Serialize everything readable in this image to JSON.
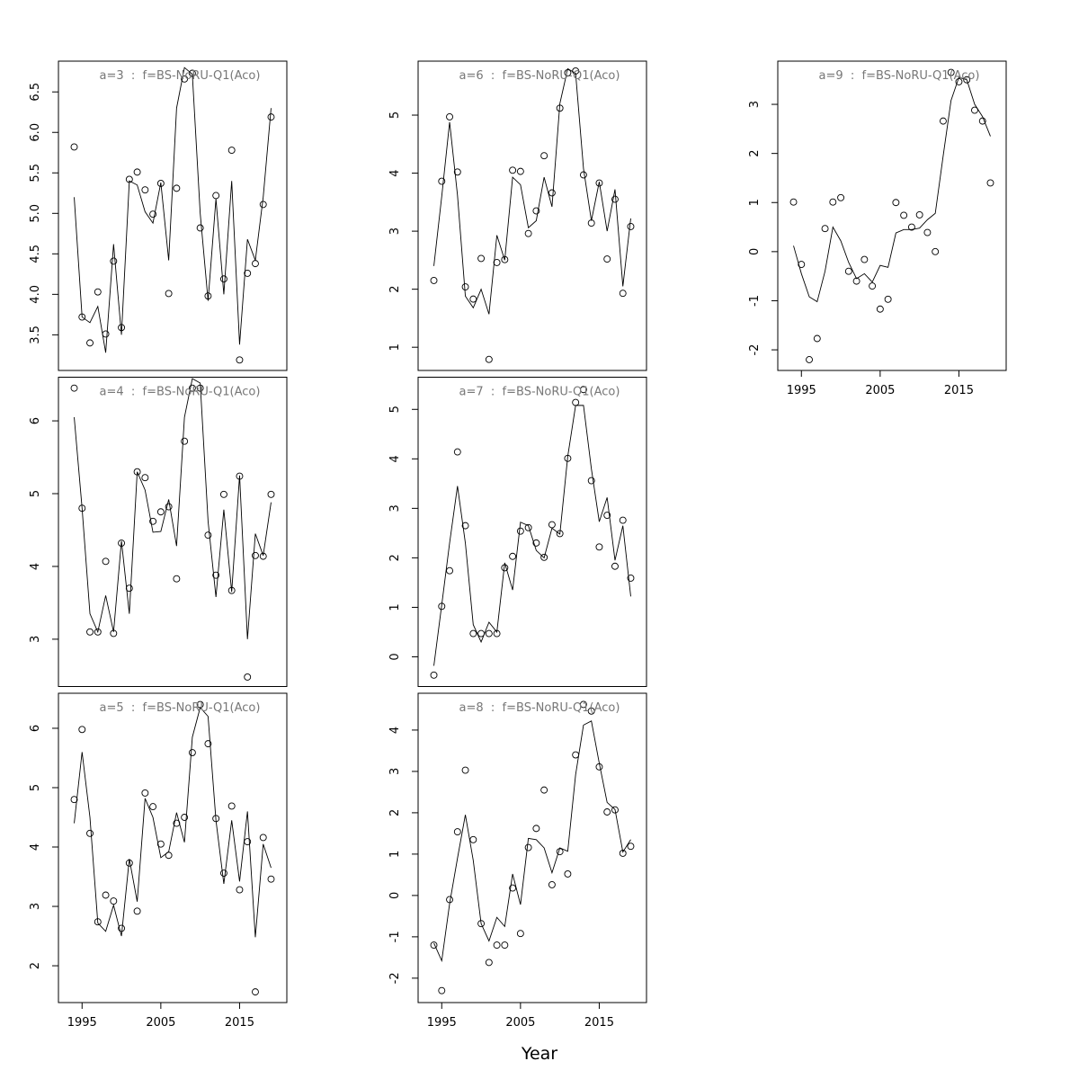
{
  "xlabel": "Year",
  "chart_data": [
    {
      "type": "line",
      "title": "a=3  :  f=BS-NoRU-Q1(Aco)",
      "xaxis": false,
      "x": [
        1994,
        1995,
        1996,
        1997,
        1998,
        1999,
        2000,
        2001,
        2002,
        2003,
        2004,
        2005,
        2006,
        2007,
        2008,
        2009,
        2010,
        2011,
        2012,
        2013,
        2014,
        2015,
        2016,
        2017,
        2018,
        2019
      ],
      "xlim": [
        1992,
        2021
      ],
      "xticks": [
        1995,
        2005,
        2015
      ],
      "ylim": [
        3.06,
        6.88
      ],
      "yticks": [
        3.5,
        {
          "value": 4,
          "label": "4.0"
        },
        4.5,
        {
          "value": 5,
          "label": "5.0"
        },
        5.5,
        {
          "value": 6,
          "label": "6.0"
        },
        6.5
      ],
      "series": [
        {
          "mark": "points",
          "color": "#000000",
          "values": [
            5.82,
            3.72,
            3.4,
            4.03,
            3.51,
            4.41,
            3.59,
            5.42,
            5.51,
            5.29,
            4.99,
            5.37,
            4.01,
            5.31,
            6.66,
            6.73,
            4.82,
            3.98,
            5.22,
            4.19,
            5.78,
            3.19,
            4.26,
            4.38,
            5.11,
            6.19
          ]
        },
        {
          "mark": "line",
          "color": "#000000",
          "values": [
            5.2,
            3.72,
            3.65,
            3.85,
            3.28,
            4.62,
            3.5,
            5.4,
            5.35,
            5.02,
            4.88,
            5.38,
            4.42,
            6.3,
            6.8,
            6.72,
            5.0,
            3.92,
            5.18,
            4.0,
            5.4,
            3.38,
            4.68,
            4.42,
            5.2,
            6.3
          ]
        }
      ]
    },
    {
      "type": "line",
      "title": "a=4  :  f=BS-NoRU-Q1(Aco)",
      "xaxis": false,
      "x": [
        1994,
        1995,
        1996,
        1997,
        1998,
        1999,
        2000,
        2001,
        2002,
        2003,
        2004,
        2005,
        2006,
        2007,
        2008,
        2009,
        2010,
        2011,
        2012,
        2013,
        2014,
        2015,
        2016,
        2017,
        2018,
        2019
      ],
      "xlim": [
        1992,
        2021
      ],
      "xticks": [
        1995,
        2005,
        2015
      ],
      "ylim": [
        2.35,
        6.6
      ],
      "yticks": [
        3,
        4,
        5,
        6
      ],
      "series": [
        {
          "mark": "points",
          "color": "#000000",
          "values": [
            6.45,
            4.8,
            3.1,
            3.1,
            4.07,
            3.08,
            4.32,
            3.7,
            5.3,
            5.22,
            4.62,
            4.75,
            4.82,
            3.83,
            5.72,
            6.45,
            6.45,
            4.43,
            3.88,
            4.99,
            3.67,
            5.24,
            2.48,
            4.15,
            4.14,
            4.99
          ]
        },
        {
          "mark": "line",
          "color": "#000000",
          "values": [
            6.05,
            4.8,
            3.35,
            3.1,
            3.6,
            3.1,
            4.35,
            3.35,
            5.3,
            5.05,
            4.47,
            4.48,
            4.92,
            4.28,
            6.05,
            6.58,
            6.52,
            4.62,
            3.58,
            4.78,
            3.65,
            5.25,
            3.0,
            4.45,
            4.15,
            4.88
          ]
        }
      ]
    },
    {
      "type": "line",
      "title": "a=5  :  f=BS-NoRU-Q1(Aco)",
      "xaxis": true,
      "x": [
        1994,
        1995,
        1996,
        1997,
        1998,
        1999,
        2000,
        2001,
        2002,
        2003,
        2004,
        2005,
        2006,
        2007,
        2008,
        2009,
        2010,
        2011,
        2012,
        2013,
        2014,
        2015,
        2016,
        2017,
        2018,
        2019
      ],
      "xlim": [
        1992,
        2021
      ],
      "xticks": [
        1995,
        2005,
        2015
      ],
      "ylim": [
        1.38,
        6.59
      ],
      "yticks": [
        2,
        3,
        4,
        5,
        6
      ],
      "series": [
        {
          "mark": "points",
          "color": "#000000",
          "values": [
            4.8,
            5.98,
            4.23,
            2.74,
            3.19,
            3.09,
            2.63,
            3.73,
            2.92,
            4.91,
            4.68,
            4.05,
            3.86,
            4.4,
            4.5,
            5.59,
            6.4,
            5.74,
            4.48,
            3.56,
            4.69,
            3.28,
            4.09,
            1.56,
            4.16,
            3.46
          ]
        },
        {
          "mark": "line",
          "color": "#000000",
          "values": [
            4.4,
            5.6,
            4.5,
            2.72,
            2.58,
            3.02,
            2.5,
            3.8,
            3.08,
            4.82,
            4.5,
            3.82,
            3.92,
            4.58,
            4.08,
            5.85,
            6.35,
            6.2,
            4.45,
            3.38,
            4.45,
            3.42,
            4.6,
            2.48,
            4.05,
            3.65
          ]
        }
      ]
    },
    {
      "type": "line",
      "title": "a=6  :  f=BS-NoRU-Q1(Aco)",
      "xaxis": false,
      "x": [
        1994,
        1995,
        1996,
        1997,
        1998,
        1999,
        2000,
        2001,
        2002,
        2003,
        2004,
        2005,
        2006,
        2007,
        2008,
        2009,
        2010,
        2011,
        2012,
        2013,
        2014,
        2015,
        2016,
        2017,
        2018,
        2019
      ],
      "xlim": [
        1992,
        2021
      ],
      "xticks": [
        1995,
        2005,
        2015
      ],
      "ylim": [
        0.6,
        5.93
      ],
      "yticks": [
        1,
        2,
        3,
        4,
        5
      ],
      "series": [
        {
          "mark": "points",
          "color": "#000000",
          "values": [
            2.15,
            3.86,
            4.97,
            4.02,
            2.04,
            1.83,
            2.53,
            0.79,
            2.46,
            2.51,
            4.05,
            4.03,
            2.96,
            3.35,
            4.3,
            3.66,
            5.12,
            5.73,
            5.76,
            3.97,
            3.14,
            3.83,
            2.52,
            3.55,
            1.93,
            3.08
          ]
        },
        {
          "mark": "line",
          "color": "#000000",
          "values": [
            2.4,
            3.6,
            4.88,
            3.62,
            1.88,
            1.68,
            2.0,
            1.57,
            2.93,
            2.5,
            3.93,
            3.8,
            3.06,
            3.18,
            3.93,
            3.42,
            5.2,
            5.8,
            5.72,
            4.08,
            3.18,
            3.85,
            3.0,
            3.72,
            2.05,
            3.22
          ]
        }
      ]
    },
    {
      "type": "line",
      "title": "a=7  :  f=BS-NoRU-Q1(Aco)",
      "xaxis": false,
      "x": [
        1994,
        1995,
        1996,
        1997,
        1998,
        1999,
        2000,
        2001,
        2002,
        2003,
        2004,
        2005,
        2006,
        2007,
        2008,
        2009,
        2010,
        2011,
        2012,
        2013,
        2014,
        2015,
        2016,
        2017,
        2018,
        2019
      ],
      "xlim": [
        1992,
        2021
      ],
      "xticks": [
        1995,
        2005,
        2015
      ],
      "ylim": [
        -0.6,
        5.65
      ],
      "yticks": [
        0,
        1,
        2,
        3,
        4,
        5
      ],
      "series": [
        {
          "mark": "points",
          "color": "#000000",
          "values": [
            -0.37,
            1.02,
            1.74,
            4.14,
            2.65,
            0.47,
            0.47,
            0.47,
            0.47,
            1.8,
            2.03,
            2.54,
            2.61,
            2.3,
            2.01,
            2.67,
            2.49,
            4.01,
            5.14,
            5.4,
            3.56,
            2.22,
            2.86,
            1.83,
            2.76,
            1.59
          ]
        },
        {
          "mark": "line",
          "color": "#000000",
          "values": [
            -0.18,
            1.05,
            2.3,
            3.45,
            2.3,
            0.65,
            0.3,
            0.7,
            0.5,
            1.9,
            1.35,
            2.72,
            2.65,
            2.15,
            2.0,
            2.6,
            2.48,
            4.05,
            5.08,
            5.08,
            3.8,
            2.73,
            3.22,
            1.95,
            2.65,
            1.22
          ]
        }
      ]
    },
    {
      "type": "line",
      "title": "a=8  :  f=BS-NoRU-Q1(Aco)",
      "xaxis": true,
      "x": [
        1994,
        1995,
        1996,
        1997,
        1998,
        1999,
        2000,
        2001,
        2002,
        2003,
        2004,
        2005,
        2006,
        2007,
        2008,
        2009,
        2010,
        2011,
        2012,
        2013,
        2014,
        2015,
        2016,
        2017,
        2018,
        2019
      ],
      "xlim": [
        1992,
        2021
      ],
      "xticks": [
        1995,
        2005,
        2015
      ],
      "ylim": [
        -2.59,
        4.89
      ],
      "yticks": [
        -2,
        -1,
        0,
        1,
        2,
        3,
        4
      ],
      "series": [
        {
          "mark": "points",
          "color": "#000000",
          "values": [
            -1.2,
            -2.3,
            -0.1,
            1.54,
            3.03,
            1.35,
            -0.68,
            -1.62,
            -1.2,
            -1.2,
            0.18,
            -0.92,
            1.16,
            1.62,
            2.55,
            0.26,
            1.06,
            0.52,
            3.4,
            4.62,
            4.46,
            3.11,
            2.02,
            2.07,
            1.02,
            1.19
          ]
        },
        {
          "mark": "line",
          "color": "#000000",
          "values": [
            -1.15,
            -1.58,
            -0.2,
            0.9,
            1.95,
            0.85,
            -0.68,
            -1.1,
            -0.53,
            -0.75,
            0.52,
            -0.22,
            1.38,
            1.35,
            1.15,
            0.55,
            1.15,
            1.07,
            2.92,
            4.12,
            4.22,
            3.2,
            2.25,
            2.08,
            1.05,
            1.35
          ]
        }
      ]
    },
    {
      "type": "line",
      "title": "a=9  :  f=BS-NoRU-Q1(Aco)",
      "xaxis": true,
      "x": [
        1994,
        1995,
        1996,
        1997,
        1998,
        1999,
        2000,
        2001,
        2002,
        2003,
        2004,
        2005,
        2006,
        2007,
        2008,
        2009,
        2010,
        2011,
        2012,
        2013,
        2014,
        2015,
        2016,
        2017,
        2018,
        2019
      ],
      "xlim": [
        1992,
        2021
      ],
      "xticks": [
        1995,
        2005,
        2015
      ],
      "ylim": [
        -2.42,
        3.88
      ],
      "yticks": [
        -2,
        -1,
        0,
        1,
        2,
        3
      ],
      "series": [
        {
          "mark": "points",
          "color": "#000000",
          "values": [
            1.01,
            -0.26,
            -2.2,
            -1.77,
            0.47,
            1.01,
            1.1,
            -0.4,
            -0.6,
            -0.16,
            -0.7,
            -1.17,
            -0.97,
            1.0,
            0.74,
            0.5,
            0.75,
            0.39,
            0.0,
            2.66,
            3.65,
            3.46,
            3.5,
            2.88,
            2.66,
            1.4
          ]
        },
        {
          "mark": "line",
          "color": "#000000",
          "values": [
            0.12,
            -0.45,
            -0.92,
            -1.02,
            -0.4,
            0.5,
            0.22,
            -0.22,
            -0.55,
            -0.45,
            -0.62,
            -0.28,
            -0.32,
            0.38,
            0.45,
            0.45,
            0.48,
            0.65,
            0.78,
            1.95,
            3.08,
            3.55,
            3.5,
            3.0,
            2.75,
            2.35
          ]
        }
      ]
    }
  ]
}
